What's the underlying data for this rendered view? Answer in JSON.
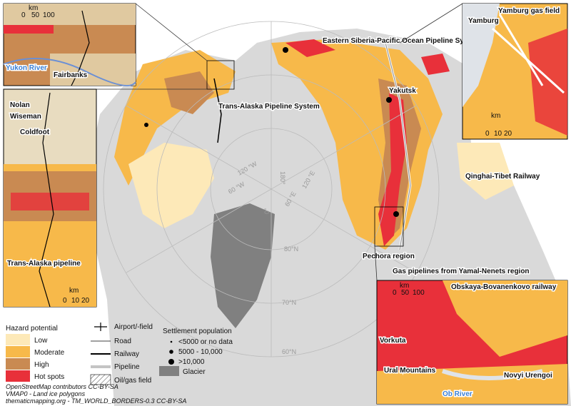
{
  "main_map": {
    "labels": [
      "Trans-Alaska Pipeline System",
      "Eastern Siberia-Pacific Ocean Pipeline System",
      "Yakutsk",
      "Qinghai-Tibet Railway",
      "Pechora region",
      "Gas pipelines from Yamal-Nenets region"
    ],
    "graticule": [
      "120 °W",
      "60 °W",
      "0°",
      "180°",
      "120 °E",
      "60 °E",
      "80°N",
      "70°N",
      "60°N"
    ]
  },
  "inset_fairbanks": {
    "scale_unit": "km",
    "scale": [
      0,
      50,
      100
    ],
    "labels": [
      "Yukon River",
      "Fairbanks"
    ]
  },
  "inset_coldfoot": {
    "scale_unit": "km",
    "scale": [
      0,
      10,
      20
    ],
    "labels": [
      "Nolan",
      "Wiseman",
      "Coldfoot",
      "Trans-Alaska pipeline"
    ]
  },
  "inset_yamburg": {
    "scale_unit": "km",
    "scale": [
      0,
      10,
      20
    ],
    "labels": [
      "Yamburg",
      "Yamburg gas field"
    ]
  },
  "inset_yamal": {
    "scale_unit": "km",
    "scale": [
      0,
      50,
      100
    ],
    "labels": [
      "Obskaya-Bovanenkovo railway",
      "Vorkuta",
      "Ural Mountains",
      "Ob River",
      "Novyi Urengoi"
    ]
  },
  "legend": {
    "hazard_title": "Hazard potential",
    "hazard": [
      {
        "label": "Low",
        "color": "#fde9b8"
      },
      {
        "label": "Moderate",
        "color": "#f7b94a"
      },
      {
        "label": "High",
        "color": "#c98a52"
      },
      {
        "label": "Hot spots",
        "color": "#e8303a"
      }
    ],
    "infrastructure": [
      "Airport/-field",
      "Road",
      "Railway",
      "Pipeline",
      "Oil/gas field",
      "Glacier"
    ],
    "settlement_title": "Settlement population",
    "settlement": [
      "<5000 or no data",
      "5000 - 10,000",
      ">10,000"
    ]
  },
  "credits": [
    "OpenStreetMap contributors CC-BY-SA",
    "VMAP0 - Land ice polygons",
    "thematicmapping.org - TM_WORLD_BORDERS-0.3 CC-BY-SA"
  ]
}
